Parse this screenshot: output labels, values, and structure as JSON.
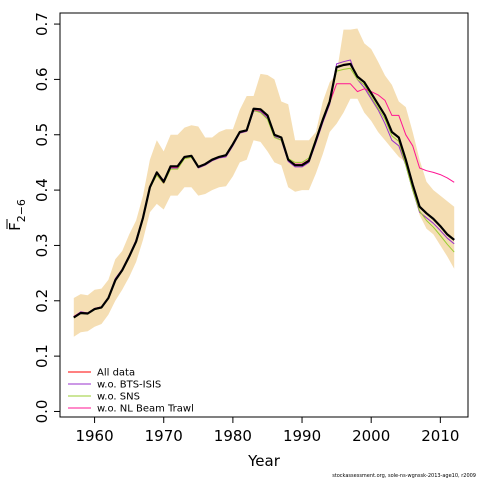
{
  "chart_data": {
    "type": "line",
    "title": "",
    "xlabel": "Year",
    "ylabel_main": "F",
    "ylabel_sub": "2−6",
    "xlim": [
      1955,
      2014
    ],
    "ylim": [
      -0.01,
      0.72
    ],
    "xticks": [
      1960,
      1970,
      1980,
      1990,
      2000,
      2010
    ],
    "xtick_labels": [
      "1960",
      "1970",
      "1980",
      "1990",
      "2000",
      "2010"
    ],
    "yticks": [
      0.0,
      0.1,
      0.2,
      0.3,
      0.4,
      0.5,
      0.6,
      0.7
    ],
    "ytick_labels": [
      "0.0",
      "0.1",
      "0.2",
      "0.3",
      "0.4",
      "0.5",
      "0.6",
      "0.7"
    ],
    "legend_position": "bottom-left",
    "credit": "stockassessment.org, sole-ns-wgnssk-2013-age10, r2009",
    "x": [
      1957,
      1958,
      1959,
      1960,
      1961,
      1962,
      1963,
      1964,
      1965,
      1966,
      1967,
      1968,
      1969,
      1970,
      1971,
      1972,
      1973,
      1974,
      1975,
      1976,
      1977,
      1978,
      1979,
      1980,
      1981,
      1982,
      1983,
      1984,
      1985,
      1986,
      1987,
      1988,
      1989,
      1990,
      1991,
      1992,
      1993,
      1994,
      1995,
      1996,
      1997,
      1998,
      1999,
      2000,
      2001,
      2002,
      2003,
      2004,
      2005,
      2006,
      2007,
      2008,
      2009,
      2010,
      2011,
      2012
    ],
    "band": {
      "color": "#f5deb3",
      "lower": [
        0.135,
        0.143,
        0.145,
        0.153,
        0.158,
        0.175,
        0.2,
        0.22,
        0.243,
        0.27,
        0.31,
        0.36,
        0.375,
        0.365,
        0.39,
        0.39,
        0.405,
        0.405,
        0.39,
        0.393,
        0.4,
        0.405,
        0.407,
        0.425,
        0.45,
        0.455,
        0.49,
        0.487,
        0.47,
        0.45,
        0.445,
        0.405,
        0.397,
        0.4,
        0.4,
        0.43,
        0.465,
        0.505,
        0.52,
        0.54,
        0.565,
        0.565,
        0.54,
        0.525,
        0.505,
        0.49,
        0.475,
        0.46,
        0.45,
        0.4,
        0.355,
        0.33,
        0.32,
        0.3,
        0.28,
        0.258
      ],
      "upper": [
        0.205,
        0.212,
        0.21,
        0.22,
        0.222,
        0.238,
        0.275,
        0.29,
        0.32,
        0.345,
        0.39,
        0.455,
        0.49,
        0.47,
        0.5,
        0.5,
        0.513,
        0.517,
        0.515,
        0.495,
        0.495,
        0.505,
        0.51,
        0.51,
        0.545,
        0.57,
        0.57,
        0.61,
        0.608,
        0.6,
        0.56,
        0.555,
        0.49,
        0.49,
        0.49,
        0.505,
        0.56,
        0.595,
        0.61,
        0.69,
        0.69,
        0.692,
        0.665,
        0.655,
        0.632,
        0.607,
        0.59,
        0.56,
        0.55,
        0.505,
        0.455,
        0.415,
        0.4,
        0.39,
        0.38,
        0.37
      ]
    },
    "series": [
      {
        "name": "All data",
        "color": "#ff0000",
        "width": 1,
        "values": [
          0.17,
          0.178,
          0.177,
          0.185,
          0.188,
          0.205,
          0.237,
          0.255,
          0.28,
          0.307,
          0.35,
          0.405,
          0.432,
          0.415,
          0.443,
          0.443,
          0.46,
          0.462,
          0.442,
          0.447,
          0.455,
          0.46,
          0.463,
          0.483,
          0.505,
          0.508,
          0.547,
          0.546,
          0.535,
          0.5,
          0.495,
          0.455,
          0.445,
          0.445,
          0.453,
          0.49,
          0.527,
          0.56,
          0.622,
          0.626,
          0.628,
          0.605,
          0.595,
          0.575,
          0.555,
          0.535,
          0.505,
          0.495,
          0.455,
          0.41,
          0.37,
          0.358,
          0.348,
          0.335,
          0.32,
          0.31
        ]
      },
      {
        "name": "w.o. BTS-ISIS",
        "color": "#9932cc",
        "width": 1,
        "values": [
          0.171,
          0.18,
          0.178,
          0.186,
          0.189,
          0.206,
          0.24,
          0.257,
          0.282,
          0.31,
          0.352,
          0.407,
          0.43,
          0.418,
          0.44,
          0.44,
          0.458,
          0.46,
          0.44,
          0.445,
          0.453,
          0.458,
          0.46,
          0.48,
          0.503,
          0.506,
          0.543,
          0.542,
          0.53,
          0.497,
          0.49,
          0.452,
          0.442,
          0.442,
          0.45,
          0.485,
          0.522,
          0.555,
          0.628,
          0.632,
          0.635,
          0.6,
          0.585,
          0.565,
          0.545,
          0.52,
          0.49,
          0.48,
          0.445,
          0.4,
          0.36,
          0.35,
          0.34,
          0.327,
          0.313,
          0.303
        ]
      },
      {
        "name": "w.o. SNS",
        "color": "#9acd32",
        "width": 1,
        "values": [
          0.169,
          0.177,
          0.176,
          0.184,
          0.187,
          0.204,
          0.236,
          0.254,
          0.279,
          0.306,
          0.349,
          0.404,
          0.427,
          0.412,
          0.438,
          0.438,
          0.457,
          0.459,
          0.441,
          0.446,
          0.454,
          0.459,
          0.462,
          0.482,
          0.504,
          0.507,
          0.544,
          0.54,
          0.528,
          0.495,
          0.49,
          0.457,
          0.45,
          0.45,
          0.458,
          0.493,
          0.53,
          0.562,
          0.615,
          0.618,
          0.62,
          0.6,
          0.59,
          0.568,
          0.548,
          0.528,
          0.498,
          0.488,
          0.445,
          0.4,
          0.362,
          0.345,
          0.333,
          0.318,
          0.302,
          0.288
        ]
      },
      {
        "name": "w.o. NL Beam Trawl",
        "color": "#ff1493",
        "width": 1,
        "values": [
          0.172,
          0.179,
          0.178,
          0.186,
          0.189,
          0.206,
          0.238,
          0.256,
          0.281,
          0.308,
          0.351,
          0.406,
          0.43,
          0.413,
          0.441,
          0.441,
          0.459,
          0.461,
          0.441,
          0.446,
          0.454,
          0.459,
          0.462,
          0.482,
          0.504,
          0.507,
          0.545,
          0.544,
          0.533,
          0.5,
          0.495,
          0.455,
          0.447,
          0.447,
          0.455,
          0.49,
          0.525,
          0.558,
          0.592,
          0.592,
          0.592,
          0.578,
          0.583,
          0.578,
          0.572,
          0.562,
          0.535,
          0.535,
          0.5,
          0.48,
          0.44,
          0.435,
          0.432,
          0.428,
          0.422,
          0.414
        ]
      },
      {
        "name": "",
        "color": "#000000",
        "width": 2.2,
        "values": [
          0.17,
          0.178,
          0.177,
          0.185,
          0.188,
          0.205,
          0.237,
          0.255,
          0.28,
          0.307,
          0.35,
          0.405,
          0.432,
          0.415,
          0.443,
          0.443,
          0.46,
          0.462,
          0.442,
          0.447,
          0.455,
          0.46,
          0.463,
          0.483,
          0.505,
          0.508,
          0.547,
          0.546,
          0.535,
          0.5,
          0.495,
          0.455,
          0.445,
          0.445,
          0.453,
          0.49,
          0.527,
          0.56,
          0.622,
          0.626,
          0.628,
          0.605,
          0.595,
          0.575,
          0.555,
          0.535,
          0.505,
          0.495,
          0.455,
          0.41,
          0.37,
          0.358,
          0.348,
          0.335,
          0.32,
          0.31
        ]
      }
    ]
  }
}
